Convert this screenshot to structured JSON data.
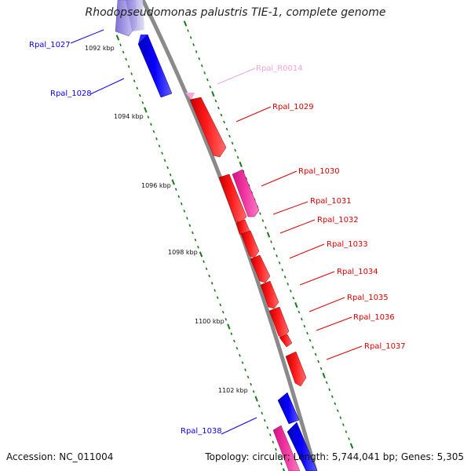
{
  "header": {
    "title": "Rhodopseudomonas palustris TIE-1, complete genome"
  },
  "footer": {
    "accession": "Accession: NC_011004",
    "summary": "Topology: circular; Length: 5,744,041 bp; Genes: 5,305"
  },
  "colors": {
    "backbone": "#8a8a8a",
    "reverse_gene": "#0a00ff",
    "forward_gene": "#ff0a0a",
    "pink_gene": "#f23aa3",
    "rna_gene": "#f4a6d6",
    "ticks": "#1a7a1a"
  },
  "scale": {
    "unit": "kbp",
    "ticks": [
      {
        "value": 1092,
        "label": "1092 kbp"
      },
      {
        "value": 1094,
        "label": "1094 kbp"
      },
      {
        "value": 1096,
        "label": "1096 kbp"
      },
      {
        "value": 1098,
        "label": "1098 kbp"
      },
      {
        "value": 1100,
        "label": "1100 kbp"
      },
      {
        "value": 1102,
        "label": "1102 kbp"
      }
    ]
  },
  "genes": [
    {
      "id": "Rpal_1027",
      "label": "Rpal_1027",
      "strand": "reverse",
      "type": "cds"
    },
    {
      "id": "Rpal_1028",
      "label": "Rpal_1028",
      "strand": "reverse",
      "type": "cds"
    },
    {
      "id": "Rpal_R0014",
      "label": "Rpal_R0014",
      "strand": "forward",
      "type": "rna"
    },
    {
      "id": "Rpal_1029",
      "label": "Rpal_1029",
      "strand": "forward",
      "type": "cds"
    },
    {
      "id": "Rpal_1030",
      "label": "Rpal_1030",
      "strand": "forward",
      "type": "cds-alt"
    },
    {
      "id": "Rpal_1031",
      "label": "Rpal_1031",
      "strand": "forward",
      "type": "cds"
    },
    {
      "id": "Rpal_1032",
      "label": "Rpal_1032",
      "strand": "forward",
      "type": "cds"
    },
    {
      "id": "Rpal_1033",
      "label": "Rpal_1033",
      "strand": "forward",
      "type": "cds"
    },
    {
      "id": "Rpal_1034",
      "label": "Rpal_1034",
      "strand": "forward",
      "type": "cds"
    },
    {
      "id": "Rpal_1035",
      "label": "Rpal_1035",
      "strand": "forward",
      "type": "cds"
    },
    {
      "id": "Rpal_1036",
      "label": "Rpal_1036",
      "strand": "forward",
      "type": "cds"
    },
    {
      "id": "Rpal_1037",
      "label": "Rpal_1037",
      "strand": "forward",
      "type": "cds"
    },
    {
      "id": "Rpal_1038",
      "label": "Rpal_1038",
      "strand": "reverse",
      "type": "cds"
    }
  ]
}
